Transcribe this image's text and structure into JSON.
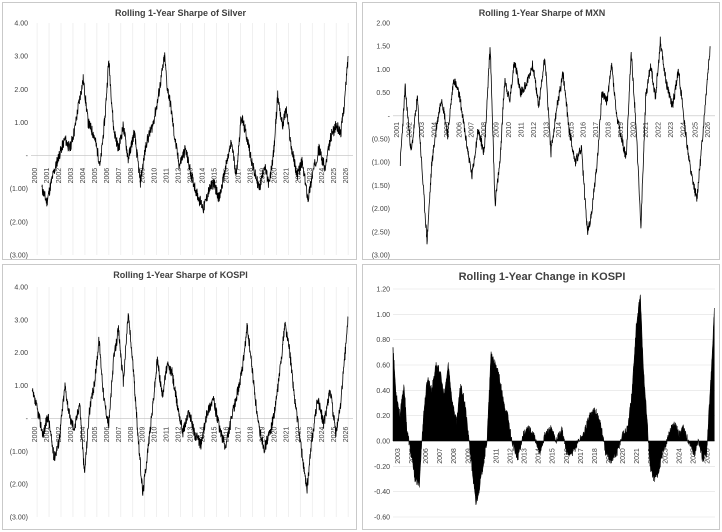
{
  "chart_data": [
    {
      "id": "silver",
      "type": "line",
      "title": "Rolling 1-Year Sharpe of Silver",
      "color": "#000000",
      "ylim": [
        -3,
        4
      ],
      "yticks": [
        4,
        3,
        2,
        1,
        0,
        -1,
        -2,
        -3
      ],
      "ytick_labels": [
        "4.00",
        "3.00",
        "2.00",
        "1.00",
        "-",
        "(1.00)",
        "(2.00)",
        "(3.00)"
      ],
      "grid": "vertical",
      "x_range": [
        2000.0,
        2026.5
      ],
      "x_tick_labels": [
        "2000",
        "2001",
        "2002",
        "2003",
        "2004",
        "2005",
        "2006",
        "2007",
        "2008",
        "2009",
        "2010",
        "2011",
        "2012",
        "2013",
        "2014",
        "2015",
        "2016",
        "2017",
        "2018",
        "2019",
        "2020",
        "2021",
        "2022",
        "2023",
        "2024",
        "2025",
        "2026"
      ],
      "series": [
        {
          "x": [
            2000.9,
            2001.3,
            2001.8,
            2002.3,
            2002.8,
            2003.2,
            2003.6,
            2003.9,
            2004.3,
            2004.7,
            2005.2,
            2005.7,
            2006.1,
            2006.4,
            2006.8,
            2007.2,
            2007.6,
            2008.0,
            2008.5,
            2009.0,
            2009.5,
            2010.0,
            2010.4,
            2010.7,
            2011.0,
            2011.2,
            2011.5,
            2011.8,
            2012.2,
            2012.7,
            2013.2,
            2013.7,
            2014.2,
            2014.6,
            2015.0,
            2015.5,
            2016.0,
            2016.5,
            2016.9,
            2017.3,
            2017.8,
            2018.3,
            2018.8,
            2019.2,
            2019.6,
            2020.0,
            2020.3,
            2020.7,
            2021.0,
            2021.4,
            2021.9,
            2022.3,
            2022.8,
            2023.2,
            2023.7,
            2024.2,
            2024.7,
            2025.1,
            2025.5,
            2025.8,
            2026.1
          ],
          "y": [
            -1.0,
            -1.4,
            -0.6,
            0.0,
            0.5,
            0.2,
            0.8,
            1.5,
            2.3,
            1.0,
            0.6,
            -0.3,
            1.2,
            2.9,
            0.8,
            0.2,
            0.9,
            -0.1,
            0.7,
            -0.8,
            0.4,
            0.9,
            1.6,
            2.3,
            3.0,
            2.1,
            1.5,
            0.6,
            -0.3,
            0.2,
            -0.6,
            -1.2,
            -1.6,
            -1.1,
            -0.8,
            -1.3,
            -0.4,
            0.4,
            -0.6,
            1.2,
            0.5,
            -0.4,
            -1.0,
            -0.3,
            -0.9,
            0.2,
            1.8,
            0.9,
            1.4,
            0.3,
            -0.6,
            -0.2,
            -1.3,
            -0.5,
            0.2,
            -0.4,
            0.6,
            0.9,
            0.7,
            1.6,
            3.0
          ]
        }
      ]
    },
    {
      "id": "mxn",
      "type": "line",
      "title": "Rolling 1-Year Sharpe of MXN",
      "color": "#000000",
      "ylim": [
        -3,
        2
      ],
      "yticks": [
        2,
        1.5,
        1,
        0.5,
        0,
        -0.5,
        -1,
        -1.5,
        -2,
        -2.5,
        -3
      ],
      "ytick_labels": [
        "2.00",
        "1.50",
        "1.00",
        "0.50",
        "-",
        "(0.50)",
        "(1.00)",
        "(1.50)",
        "(2.00)",
        "(2.50)",
        "(3.00)"
      ],
      "grid": "none",
      "x_range": [
        2000.0,
        2026.5
      ],
      "x_tick_labels": [
        "2001",
        "2002",
        "2003",
        "2004",
        "2005",
        "2006",
        "2007",
        "2008",
        "2009",
        "2010",
        "2011",
        "2012",
        "2013",
        "2014",
        "2015",
        "2016",
        "2017",
        "2018",
        "2019",
        "2020",
        "2021",
        "2022",
        "2023",
        "2024",
        "2025",
        "2026"
      ],
      "series": [
        {
          "x": [
            2000.6,
            2001.0,
            2001.5,
            2002.0,
            2002.4,
            2002.8,
            2003.2,
            2003.6,
            2004.0,
            2004.5,
            2005.0,
            2005.5,
            2006.0,
            2006.5,
            2007.0,
            2007.5,
            2008.0,
            2008.4,
            2008.8,
            2009.2,
            2009.6,
            2010.0,
            2010.5,
            2011.0,
            2011.5,
            2012.0,
            2012.5,
            2013.0,
            2013.5,
            2014.0,
            2014.5,
            2015.0,
            2015.5,
            2016.0,
            2016.3,
            2016.8,
            2017.2,
            2017.6,
            2018.0,
            2018.4,
            2018.8,
            2019.2,
            2019.6,
            2020.0,
            2020.4,
            2020.8,
            2021.2,
            2021.6,
            2022.0,
            2022.5,
            2023.0,
            2023.5,
            2024.0,
            2024.5,
            2025.0,
            2025.4,
            2025.8,
            2026.1
          ],
          "y": [
            -1.0,
            0.6,
            -0.8,
            0.4,
            -1.2,
            -2.7,
            -1.0,
            -0.2,
            0.4,
            -0.4,
            0.8,
            0.4,
            -0.5,
            -1.3,
            -0.3,
            -0.8,
            1.5,
            -1.9,
            -1.0,
            0.8,
            0.3,
            1.2,
            0.5,
            0.7,
            1.1,
            0.2,
            1.3,
            -0.8,
            0.2,
            0.9,
            -0.3,
            -1.0,
            -0.7,
            -2.5,
            -2.2,
            -1.0,
            0.5,
            0.3,
            1.1,
            0.0,
            -0.5,
            -0.9,
            1.4,
            -0.2,
            -2.4,
            0.4,
            1.1,
            0.4,
            1.6,
            0.7,
            0.2,
            1.0,
            -0.2,
            -1.2,
            -1.8,
            -0.7,
            0.6,
            1.5
          ]
        }
      ]
    },
    {
      "id": "kospi-sharpe",
      "type": "line",
      "title": "Rolling 1-Year Sharpe of KOSPI",
      "color": "#000000",
      "ylim": [
        -3,
        4
      ],
      "yticks": [
        4,
        3,
        2,
        1,
        0,
        -1,
        -2,
        -3
      ],
      "ytick_labels": [
        "4.00",
        "3.00",
        "2.00",
        "1.00",
        "-",
        "(1.00)",
        "(2.00)",
        "(3.00)"
      ],
      "grid": "vertical",
      "x_range": [
        2000.0,
        2026.5
      ],
      "x_tick_labels": [
        "2000",
        "2001",
        "2002",
        "2003",
        "2004",
        "2005",
        "2006",
        "2007",
        "2008",
        "2009",
        "2010",
        "2011",
        "2012",
        "2013",
        "2014",
        "2015",
        "2016",
        "2017",
        "2018",
        "2019",
        "2020",
        "2021",
        "2022",
        "2023",
        "2024",
        "2025",
        "2026"
      ],
      "series": [
        {
          "x": [
            2000.1,
            2000.5,
            2001.0,
            2001.4,
            2001.9,
            2002.3,
            2002.8,
            2003.2,
            2003.6,
            2004.0,
            2004.4,
            2004.8,
            2005.2,
            2005.6,
            2006.0,
            2006.4,
            2006.8,
            2007.2,
            2007.6,
            2008.0,
            2008.4,
            2008.8,
            2009.2,
            2009.6,
            2010.0,
            2010.4,
            2010.8,
            2011.2,
            2011.6,
            2012.0,
            2012.5,
            2013.0,
            2013.5,
            2014.0,
            2014.5,
            2015.0,
            2015.5,
            2016.0,
            2016.5,
            2017.0,
            2017.4,
            2017.8,
            2018.2,
            2018.7,
            2019.2,
            2019.7,
            2020.1,
            2020.5,
            2020.9,
            2021.3,
            2021.7,
            2022.2,
            2022.7,
            2023.1,
            2023.6,
            2024.1,
            2024.6,
            2025.1,
            2025.5,
            2025.9,
            2026.1
          ],
          "y": [
            0.8,
            0.3,
            -0.5,
            0.1,
            -1.2,
            -0.7,
            1.0,
            0.0,
            -0.3,
            0.5,
            -1.7,
            0.2,
            1.0,
            2.4,
            0.6,
            -0.2,
            1.8,
            2.7,
            1.1,
            3.2,
            1.6,
            -0.5,
            -2.3,
            -1.0,
            0.3,
            1.8,
            0.7,
            1.6,
            1.4,
            0.5,
            -0.4,
            0.2,
            -0.5,
            -0.8,
            0.2,
            0.6,
            -0.3,
            -0.9,
            0.0,
            0.8,
            1.5,
            2.8,
            1.5,
            -0.2,
            -0.9,
            -0.4,
            0.3,
            1.5,
            2.9,
            2.0,
            0.6,
            -0.8,
            -2.2,
            -0.7,
            0.6,
            -0.2,
            0.9,
            -0.5,
            0.5,
            2.2,
            3.1
          ]
        }
      ]
    },
    {
      "id": "kospi-change",
      "type": "area",
      "title": "Rolling 1-Year Change in KOSPI",
      "color": "#000000",
      "ylim": [
        -0.6,
        1.2
      ],
      "yticks": [
        1.2,
        1.0,
        0.8,
        0.6,
        0.4,
        0.2,
        0.0,
        -0.2,
        -0.4,
        -0.6
      ],
      "ytick_labels": [
        "1.20",
        "1.00",
        "0.80",
        "0.60",
        "0.40",
        "0.20",
        "0.00",
        "-0.20",
        "-0.40",
        "-0.60"
      ],
      "grid": "horizontal",
      "x_range": [
        2003.0,
        2026.3
      ],
      "x_tick_labels": [
        "2003",
        "2005",
        "2006",
        "2007",
        "2008",
        "2009",
        "2010",
        "2011",
        "2012",
        "2013",
        "2014",
        "2015",
        "2016",
        "2017",
        "2018",
        "2019",
        "2020",
        "2021",
        "2022",
        "2023",
        "2024",
        "2025",
        "2026"
      ],
      "series": [
        {
          "x": [
            2003.0,
            2003.2,
            2003.5,
            2003.8,
            2004.0,
            2004.3,
            2004.6,
            2004.9,
            2005.2,
            2005.5,
            2005.8,
            2006.1,
            2006.4,
            2006.7,
            2007.0,
            2007.3,
            2007.6,
            2007.9,
            2008.2,
            2008.5,
            2008.8,
            2009.0,
            2009.2,
            2009.5,
            2009.8,
            2010.1,
            2010.4,
            2010.7,
            2011.0,
            2011.3,
            2011.6,
            2012.0,
            2012.4,
            2012.8,
            2013.2,
            2013.6,
            2014.0,
            2014.4,
            2014.8,
            2015.2,
            2015.6,
            2016.0,
            2016.4,
            2016.8,
            2017.2,
            2017.6,
            2018.0,
            2018.4,
            2018.8,
            2019.2,
            2019.6,
            2020.0,
            2020.3,
            2020.6,
            2020.9,
            2021.1,
            2021.3,
            2021.6,
            2021.9,
            2022.2,
            2022.5,
            2022.8,
            2023.1,
            2023.4,
            2023.7,
            2024.0,
            2024.4,
            2024.8,
            2025.1,
            2025.4,
            2025.7,
            2025.9,
            2026.1,
            2026.25
          ],
          "y": [
            0.75,
            0.4,
            0.2,
            0.45,
            0.1,
            -0.1,
            -0.3,
            -0.35,
            0.2,
            0.5,
            0.4,
            0.6,
            0.55,
            0.35,
            0.6,
            0.3,
            0.15,
            0.45,
            0.3,
            0.0,
            -0.3,
            -0.5,
            -0.4,
            -0.2,
            0.0,
            0.7,
            0.6,
            0.5,
            0.3,
            0.2,
            0.0,
            -0.15,
            0.05,
            0.1,
            0.05,
            -0.1,
            0.05,
            0.1,
            0.0,
            0.1,
            -0.1,
            -0.1,
            0.0,
            0.05,
            0.2,
            0.25,
            0.15,
            -0.1,
            -0.15,
            -0.1,
            0.05,
            0.1,
            0.4,
            0.9,
            1.15,
            0.6,
            0.3,
            -0.2,
            -0.3,
            -0.25,
            -0.1,
            0.0,
            0.1,
            0.15,
            0.05,
            0.1,
            0.0,
            -0.1,
            0.0,
            -0.15,
            -0.1,
            0.3,
            0.7,
            1.05
          ]
        }
      ]
    }
  ]
}
